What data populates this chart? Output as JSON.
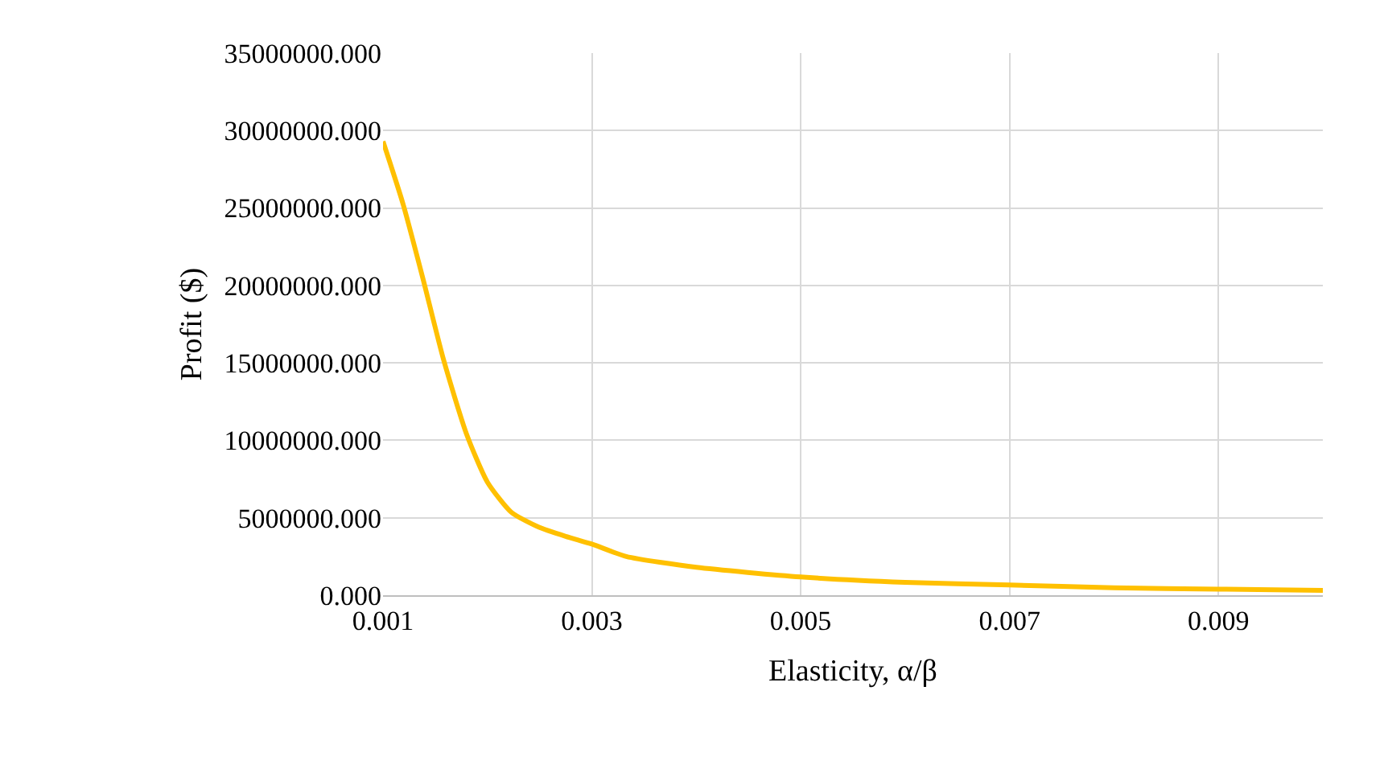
{
  "chart_data": {
    "type": "line",
    "xlabel": "Elasticity, α/β",
    "ylabel": "Profit ($)",
    "x": [
      0.001,
      0.00119,
      0.00138,
      0.00158,
      0.0018,
      0.002,
      0.00223,
      0.00249,
      0.00275,
      0.003,
      0.00333,
      0.004,
      0.005,
      0.006,
      0.007,
      0.008,
      0.009,
      0.01
    ],
    "series": [
      {
        "color": "#ffc000",
        "values": [
          29300000,
          25300000,
          20500000,
          15200000,
          10400000,
          7300000,
          5350000,
          4400000,
          3800000,
          3300000,
          2500000,
          1800000,
          1180000,
          830000,
          660000,
          480000,
          390000,
          310000
        ]
      }
    ],
    "xlim": [
      0.001,
      0.01
    ],
    "xticks": [
      {
        "value": 0.001,
        "label": "0.001"
      },
      {
        "value": 0.003,
        "label": "0.003"
      },
      {
        "value": 0.005,
        "label": "0.005"
      },
      {
        "value": 0.007,
        "label": "0.007"
      },
      {
        "value": 0.009,
        "label": "0.009"
      }
    ],
    "ylim": [
      0,
      35000000
    ],
    "yticks": [
      {
        "value": 0,
        "label": "0.000"
      },
      {
        "value": 5000000,
        "label": "5000000.000"
      },
      {
        "value": 10000000,
        "label": "10000000.000"
      },
      {
        "value": 15000000,
        "label": "15000000.000"
      },
      {
        "value": 20000000,
        "label": "20000000.000"
      },
      {
        "value": 25000000,
        "label": "25000000.000"
      },
      {
        "value": 30000000,
        "label": "30000000.000"
      },
      {
        "value": 35000000,
        "label": "35000000.000"
      }
    ],
    "grid": true,
    "legend": false,
    "marker": "none",
    "line_style": "solid"
  }
}
